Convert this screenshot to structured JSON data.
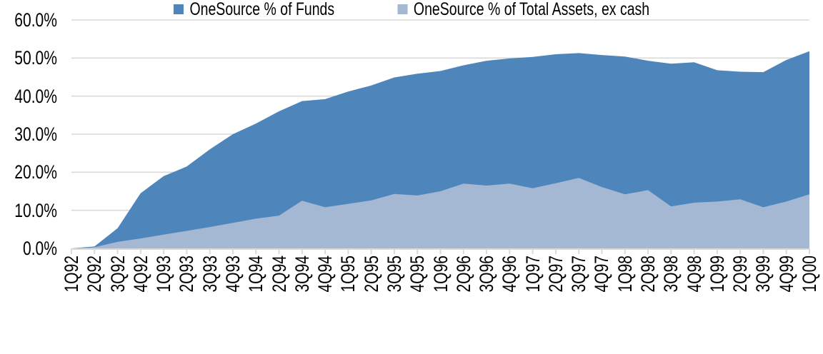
{
  "chart_data": {
    "type": "area",
    "title": "",
    "xlabel": "",
    "ylabel": "",
    "ylim": [
      0,
      60
    ],
    "grid": true,
    "legend_position": "bottom",
    "y_tick_labels": [
      "60.0%",
      "50.0%",
      "40.0%",
      "30.0%",
      "20.0%",
      "10.0%",
      "0.0%"
    ],
    "categories": [
      "1Q92",
      "2Q92",
      "3Q92",
      "4Q92",
      "1Q93",
      "2Q93",
      "3Q93",
      "4Q93",
      "1Q94",
      "2Q94",
      "3Q94",
      "4Q94",
      "1Q95",
      "2Q95",
      "3Q95",
      "4Q95",
      "1Q96",
      "2Q96",
      "3Q96",
      "4Q96",
      "1Q97",
      "2Q97",
      "3Q97",
      "4Q97",
      "1Q98",
      "2Q98",
      "3Q98",
      "4Q98",
      "1Q99",
      "2Q99",
      "3Q99",
      "4Q99",
      "1Q00"
    ],
    "series": [
      {
        "name": "OneSource % of Funds",
        "color": "#4E86BB",
        "values": [
          0.0,
          0.5,
          5.3,
          14.5,
          19.0,
          21.5,
          26.0,
          30.0,
          32.8,
          36.0,
          38.7,
          39.2,
          41.2,
          42.8,
          44.9,
          45.9,
          46.6,
          48.1,
          49.3,
          49.9,
          50.3,
          51.0,
          51.3,
          50.8,
          50.4,
          49.3,
          48.5,
          48.9,
          46.8,
          46.4,
          46.3,
          49.5,
          51.8
        ]
      },
      {
        "name": "OneSource % of Total Assets, ex cash",
        "color": "#A4B8D4",
        "values": [
          0.0,
          0.3,
          1.7,
          2.6,
          3.6,
          4.6,
          5.6,
          6.7,
          7.8,
          8.6,
          12.5,
          10.8,
          11.7,
          12.6,
          14.3,
          13.9,
          15.0,
          17.0,
          16.5,
          17.0,
          15.8,
          17.1,
          18.5,
          16.1,
          14.2,
          15.3,
          11.0,
          12.0,
          12.3,
          12.9,
          10.8,
          12.3,
          14.2
        ]
      }
    ],
    "gridline_color": "#D9D9D9"
  }
}
